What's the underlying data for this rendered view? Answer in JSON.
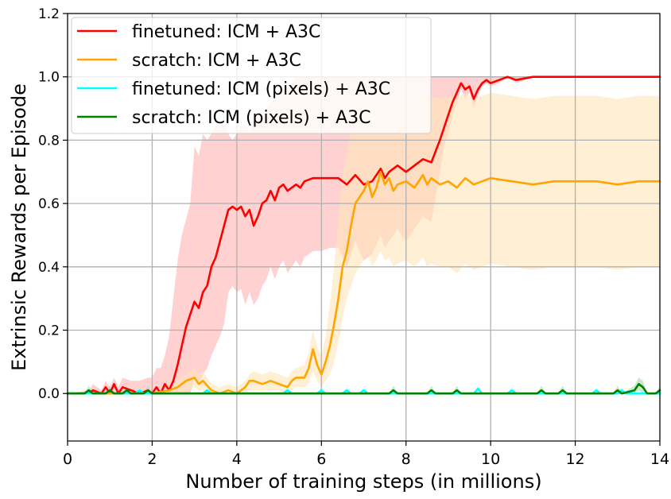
{
  "chart_data": {
    "type": "line",
    "title": "",
    "xlabel": "Number of training steps (in millions)",
    "ylabel": "Extrinsic Rewards per Episode",
    "xlim": [
      0,
      14
    ],
    "ylim": [
      -0.15,
      1.2
    ],
    "xticks": [
      0,
      2,
      4,
      6,
      8,
      10,
      12,
      14
    ],
    "xtick_labels": [
      "0",
      "2",
      "4",
      "6",
      "8",
      "10",
      "12",
      "14"
    ],
    "yticks": [
      0.0,
      0.2,
      0.4,
      0.6,
      0.8,
      1.0,
      1.2
    ],
    "ytick_labels": [
      "0.0",
      "0.2",
      "0.4",
      "0.6",
      "0.8",
      "1.0",
      "1.2"
    ],
    "grid": true,
    "legend_position": "top-left",
    "series": [
      {
        "name": "finetuned: ICM + A3C",
        "color": "#ff0000",
        "band_color": "#ffb3b3",
        "x": [
          0,
          0.5,
          0.6,
          0.8,
          0.9,
          1.0,
          1.1,
          1.2,
          1.3,
          1.5,
          1.7,
          1.9,
          2.0,
          2.1,
          2.2,
          2.3,
          2.4,
          2.5,
          2.6,
          2.7,
          2.8,
          2.9,
          3.0,
          3.1,
          3.2,
          3.3,
          3.4,
          3.5,
          3.6,
          3.7,
          3.8,
          3.9,
          4.0,
          4.1,
          4.2,
          4.3,
          4.4,
          4.5,
          4.6,
          4.7,
          4.8,
          4.9,
          5.0,
          5.1,
          5.2,
          5.3,
          5.4,
          5.5,
          5.6,
          5.8,
          6.0,
          6.2,
          6.4,
          6.6,
          6.8,
          7.0,
          7.2,
          7.4,
          7.5,
          7.6,
          7.8,
          8.0,
          8.2,
          8.4,
          8.6,
          8.8,
          8.9,
          9.0,
          9.1,
          9.2,
          9.3,
          9.4,
          9.5,
          9.6,
          9.7,
          9.8,
          9.9,
          10.0,
          10.2,
          10.4,
          10.6,
          11.0,
          11.5,
          12.0,
          12.5,
          13.0,
          13.5,
          14.0
        ],
        "y": [
          0,
          0,
          0.01,
          0.0,
          0.02,
          0.0,
          0.03,
          0.0,
          0.02,
          0.01,
          0.0,
          0.01,
          0.0,
          0.02,
          0.0,
          0.03,
          0.01,
          0.04,
          0.09,
          0.15,
          0.21,
          0.25,
          0.29,
          0.27,
          0.32,
          0.34,
          0.4,
          0.43,
          0.48,
          0.53,
          0.58,
          0.59,
          0.58,
          0.59,
          0.56,
          0.58,
          0.53,
          0.56,
          0.6,
          0.61,
          0.64,
          0.61,
          0.65,
          0.66,
          0.64,
          0.65,
          0.66,
          0.65,
          0.67,
          0.68,
          0.68,
          0.68,
          0.68,
          0.66,
          0.69,
          0.66,
          0.67,
          0.71,
          0.68,
          0.7,
          0.72,
          0.7,
          0.72,
          0.74,
          0.73,
          0.8,
          0.84,
          0.88,
          0.92,
          0.95,
          0.98,
          0.96,
          0.97,
          0.93,
          0.96,
          0.98,
          0.99,
          0.98,
          0.99,
          1.0,
          0.99,
          1.0,
          1.0,
          1.0,
          1.0,
          1.0,
          1.0,
          1.0
        ],
        "upper": [
          0,
          0.01,
          0.03,
          0.01,
          0.04,
          0.02,
          0.05,
          0.02,
          0.05,
          0.04,
          0.04,
          0.05,
          0.05,
          0.08,
          0.08,
          0.12,
          0.18,
          0.3,
          0.42,
          0.5,
          0.55,
          0.6,
          0.78,
          0.75,
          0.82,
          0.8,
          0.82,
          0.85,
          0.86,
          0.85,
          0.82,
          0.8,
          0.82,
          0.84,
          0.85,
          0.82,
          0.86,
          0.87,
          0.88,
          0.9,
          0.92,
          0.93,
          0.95,
          0.96,
          0.97,
          0.98,
          1.0,
          1.0,
          1.0,
          1.0,
          1.0,
          1.0,
          1.0,
          1.0,
          1.0,
          1.0,
          1.0,
          1.0,
          1.0,
          1.0,
          1.0,
          1.0,
          1.0,
          1.0,
          1.0,
          1.0,
          1.0,
          1.0,
          1.0,
          1.0,
          1.0,
          1.0,
          1.0,
          1.0,
          1.0,
          1.0,
          1.0,
          1.0,
          1.0,
          1.0,
          1.0,
          1.0,
          1.0,
          1.0,
          1.0,
          1.0,
          1.0,
          1.0
        ],
        "lower": [
          0,
          0,
          0,
          0,
          0,
          0,
          0,
          0,
          0,
          0,
          0,
          0,
          0,
          0,
          0,
          0,
          0,
          0,
          0,
          0,
          0,
          0,
          0.05,
          0.03,
          0.06,
          0.08,
          0.12,
          0.15,
          0.18,
          0.22,
          0.32,
          0.34,
          0.32,
          0.33,
          0.28,
          0.32,
          0.28,
          0.3,
          0.34,
          0.36,
          0.4,
          0.36,
          0.4,
          0.42,
          0.38,
          0.4,
          0.42,
          0.4,
          0.43,
          0.45,
          0.45,
          0.46,
          0.46,
          0.4,
          0.48,
          0.42,
          0.44,
          0.5,
          0.46,
          0.48,
          0.52,
          0.48,
          0.52,
          0.56,
          0.54,
          0.7,
          0.78,
          0.82,
          0.88,
          0.92,
          0.96,
          0.93,
          0.95,
          0.9,
          0.94,
          0.97,
          0.98,
          0.97,
          0.98,
          1.0,
          0.98,
          1.0,
          1.0,
          1.0,
          1.0,
          1.0,
          1.0,
          1.0
        ]
      },
      {
        "name": "scratch: ICM + A3C",
        "color": "#ffa500",
        "band_color": "#ffe4b8",
        "x": [
          0,
          0.5,
          1.0,
          1.5,
          2.0,
          2.4,
          2.6,
          2.8,
          3.0,
          3.1,
          3.2,
          3.4,
          3.6,
          3.8,
          4.0,
          4.2,
          4.3,
          4.4,
          4.6,
          4.8,
          5.0,
          5.2,
          5.3,
          5.4,
          5.6,
          5.7,
          5.8,
          5.9,
          6.0,
          6.1,
          6.2,
          6.3,
          6.4,
          6.5,
          6.6,
          6.7,
          6.8,
          6.9,
          7.0,
          7.1,
          7.2,
          7.3,
          7.4,
          7.5,
          7.6,
          7.7,
          7.8,
          8.0,
          8.2,
          8.4,
          8.5,
          8.6,
          8.8,
          9.0,
          9.2,
          9.4,
          9.6,
          9.8,
          10.0,
          10.5,
          11.0,
          11.5,
          12.0,
          12.5,
          13.0,
          13.5,
          14.0
        ],
        "y": [
          0,
          0,
          0,
          0,
          0,
          0.01,
          0.02,
          0.04,
          0.05,
          0.03,
          0.04,
          0.01,
          0.0,
          0.01,
          0.0,
          0.02,
          0.04,
          0.04,
          0.03,
          0.04,
          0.03,
          0.02,
          0.04,
          0.05,
          0.05,
          0.08,
          0.14,
          0.09,
          0.06,
          0.1,
          0.15,
          0.22,
          0.3,
          0.4,
          0.45,
          0.53,
          0.6,
          0.62,
          0.64,
          0.67,
          0.62,
          0.65,
          0.7,
          0.66,
          0.68,
          0.64,
          0.66,
          0.67,
          0.65,
          0.69,
          0.66,
          0.68,
          0.66,
          0.67,
          0.65,
          0.68,
          0.66,
          0.67,
          0.68,
          0.67,
          0.66,
          0.67,
          0.67,
          0.67,
          0.66,
          0.67,
          0.67
        ],
        "upper": [
          0,
          0,
          0,
          0,
          0,
          0.02,
          0.04,
          0.06,
          0.08,
          0.06,
          0.07,
          0.03,
          0.02,
          0.03,
          0.02,
          0.04,
          0.06,
          0.07,
          0.06,
          0.07,
          0.06,
          0.05,
          0.07,
          0.08,
          0.09,
          0.13,
          0.2,
          0.15,
          0.12,
          0.18,
          0.28,
          0.4,
          0.55,
          0.7,
          0.76,
          0.82,
          0.86,
          0.88,
          0.92,
          0.94,
          0.9,
          0.93,
          0.95,
          0.92,
          0.94,
          0.92,
          0.93,
          0.94,
          0.92,
          0.95,
          0.93,
          0.94,
          0.93,
          0.94,
          0.93,
          0.95,
          0.93,
          0.94,
          0.95,
          0.94,
          0.93,
          0.94,
          0.94,
          0.94,
          0.93,
          0.94,
          0.94
        ],
        "lower": [
          0,
          0,
          0,
          0,
          0,
          0,
          0,
          0.01,
          0.02,
          0.01,
          0.01,
          0,
          0,
          0,
          0,
          0,
          0.01,
          0.01,
          0.01,
          0.01,
          0.01,
          0,
          0.01,
          0.02,
          0.02,
          0.03,
          0.07,
          0.04,
          0.02,
          0.04,
          0.06,
          0.1,
          0.16,
          0.24,
          0.3,
          0.34,
          0.38,
          0.4,
          0.42,
          0.44,
          0.4,
          0.42,
          0.45,
          0.42,
          0.43,
          0.4,
          0.41,
          0.42,
          0.4,
          0.43,
          0.4,
          0.41,
          0.4,
          0.4,
          0.38,
          0.41,
          0.39,
          0.4,
          0.41,
          0.4,
          0.39,
          0.4,
          0.4,
          0.4,
          0.39,
          0.4,
          0.4
        ]
      },
      {
        "name": "finetuned: ICM (pixels) + A3C",
        "color": "#00ffff",
        "band_color": "#b3ffff",
        "x": [
          0,
          0.9,
          1.0,
          1.1,
          1.6,
          1.7,
          1.8,
          3.2,
          3.3,
          3.4,
          5.1,
          5.2,
          5.3,
          5.9,
          6.0,
          6.1,
          6.5,
          6.6,
          6.7,
          6.9,
          7.0,
          7.1,
          9.6,
          9.7,
          9.8,
          10.4,
          10.5,
          10.6,
          12.4,
          12.5,
          12.6,
          13.0,
          13.1,
          13.2,
          14.0
        ],
        "y": [
          0,
          0,
          0.01,
          0,
          0,
          0.01,
          0,
          0,
          0.01,
          0,
          0,
          0.01,
          0,
          0,
          0.01,
          0,
          0,
          0.01,
          0,
          0,
          0.01,
          0,
          0,
          0.015,
          0,
          0,
          0.01,
          0,
          0,
          0.01,
          0,
          0,
          0.01,
          0,
          0
        ],
        "upper": [
          0,
          0,
          0.02,
          0,
          0,
          0.02,
          0,
          0,
          0.02,
          0,
          0,
          0.02,
          0,
          0,
          0.02,
          0,
          0,
          0.02,
          0,
          0,
          0.02,
          0,
          0,
          0.025,
          0,
          0,
          0.02,
          0,
          0,
          0.02,
          0,
          0,
          0.02,
          0,
          0
        ],
        "lower": [
          0,
          0,
          0,
          0,
          0,
          0,
          0,
          0,
          0,
          0,
          0,
          0,
          0,
          0,
          0,
          0,
          0,
          0,
          0,
          0,
          0,
          0,
          0,
          0,
          0,
          0,
          0,
          0,
          0,
          0,
          0,
          0,
          0,
          0,
          0
        ]
      },
      {
        "name": "scratch: ICM (pixels) + A3C",
        "color": "#008000",
        "band_color": "#a8d8a8",
        "x": [
          0,
          0.4,
          0.5,
          0.6,
          0.9,
          1.0,
          1.1,
          1.3,
          1.4,
          1.5,
          1.8,
          1.9,
          2.0,
          7.6,
          7.7,
          7.8,
          8.5,
          8.6,
          8.7,
          9.1,
          9.2,
          9.3,
          11.1,
          11.2,
          11.3,
          11.6,
          11.7,
          11.8,
          12.9,
          13.0,
          13.1,
          13.4,
          13.5,
          13.6,
          13.7,
          13.9,
          14.0
        ],
        "y": [
          0,
          0,
          0.01,
          0,
          0,
          0.01,
          0,
          0,
          0.01,
          0,
          0,
          0.01,
          0,
          0,
          0.01,
          0,
          0,
          0.01,
          0,
          0,
          0.01,
          0,
          0,
          0.01,
          0,
          0,
          0.01,
          0,
          0,
          0.01,
          0,
          0.01,
          0.03,
          0.02,
          0,
          0,
          0.01
        ],
        "upper": [
          0,
          0,
          0.025,
          0,
          0,
          0.025,
          0,
          0,
          0.025,
          0,
          0,
          0.025,
          0,
          0,
          0.025,
          0,
          0,
          0.025,
          0,
          0,
          0.025,
          0,
          0,
          0.025,
          0,
          0,
          0.025,
          0,
          0,
          0.025,
          0,
          0.025,
          0.05,
          0.04,
          0,
          0,
          0.025
        ],
        "lower": [
          0,
          0,
          0,
          0,
          0,
          0,
          0,
          0,
          0,
          0,
          0,
          0,
          0,
          0,
          0,
          0,
          0,
          0,
          0,
          0,
          0,
          0,
          0,
          0,
          0,
          0,
          0,
          0,
          0,
          0,
          0,
          0,
          0.01,
          0,
          0,
          0,
          0
        ]
      }
    ]
  }
}
